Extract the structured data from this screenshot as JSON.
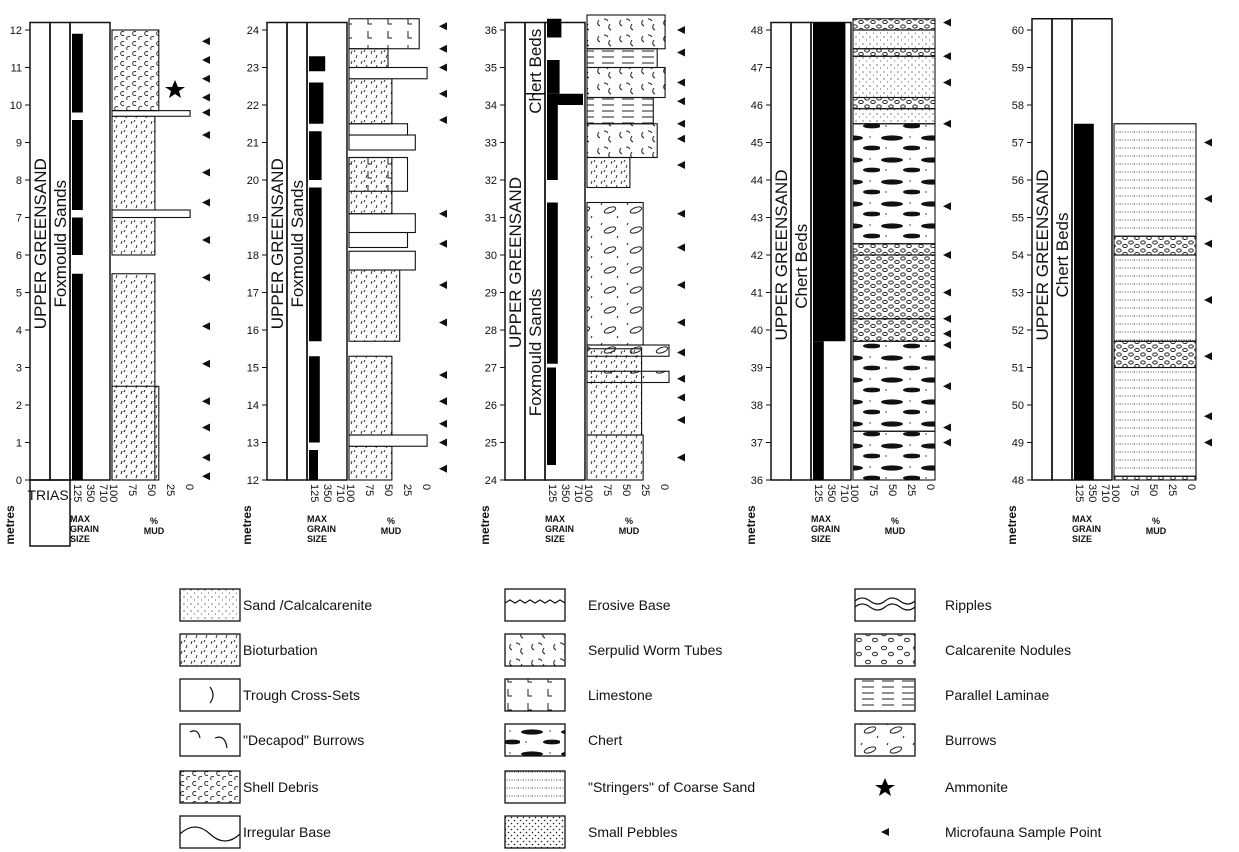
{
  "axis": {
    "depth_label": "metres",
    "grain_label": [
      "MAX",
      "GRAIN",
      "SIZE"
    ],
    "grain_ticks": [
      "125",
      "350",
      "710"
    ],
    "mud_label": [
      "%",
      "MUD"
    ],
    "mud_ticks": [
      "100",
      "75",
      "50",
      "25",
      "0"
    ]
  },
  "base_unit": "TRIAS.",
  "columns": [
    {
      "depth_ticks": [
        0,
        1,
        2,
        3,
        4,
        5,
        6,
        7,
        8,
        9,
        10,
        11,
        12
      ],
      "units": [
        "UPPER GREENSAND",
        "Foxmould Sands"
      ]
    },
    {
      "depth_ticks": [
        12,
        13,
        14,
        15,
        16,
        17,
        18,
        19,
        20,
        21,
        22,
        23,
        24
      ],
      "units": [
        "UPPER GREENSAND",
        "Foxmould Sands"
      ]
    },
    {
      "depth_ticks": [
        24,
        25,
        26,
        27,
        28,
        29,
        30,
        31,
        32,
        33,
        34,
        35,
        36
      ],
      "units": [
        "UPPER GREENSAND",
        "Chert Beds",
        "Foxmould Sands"
      ]
    },
    {
      "depth_ticks": [
        36,
        37,
        38,
        39,
        40,
        41,
        42,
        43,
        44,
        45,
        46,
        47,
        48
      ],
      "units": [
        "UPPER GREENSAND",
        "Chert Beds"
      ]
    },
    {
      "depth_ticks": [
        48,
        49,
        50,
        51,
        52,
        53,
        54,
        55,
        56,
        57,
        58,
        59,
        60
      ],
      "units": [
        "UPPER GREENSAND",
        "Chert Beds"
      ]
    }
  ],
  "legend": [
    "Sand /Calcalcarenite",
    "Bioturbation",
    "Trough Cross-Sets",
    "\"Decapod\" Burrows",
    "Shell Debris",
    "Irregular Base",
    "Erosive Base",
    "Serpulid Worm Tubes",
    "Limestone",
    "Chert",
    "\"Stringers\" of Coarse Sand",
    "Small Pebbles",
    "Ripples",
    "Calcarenite Nodules",
    "Parallel Laminae",
    "Burrows",
    "Ammonite",
    "Microfauna Sample Point"
  ]
}
